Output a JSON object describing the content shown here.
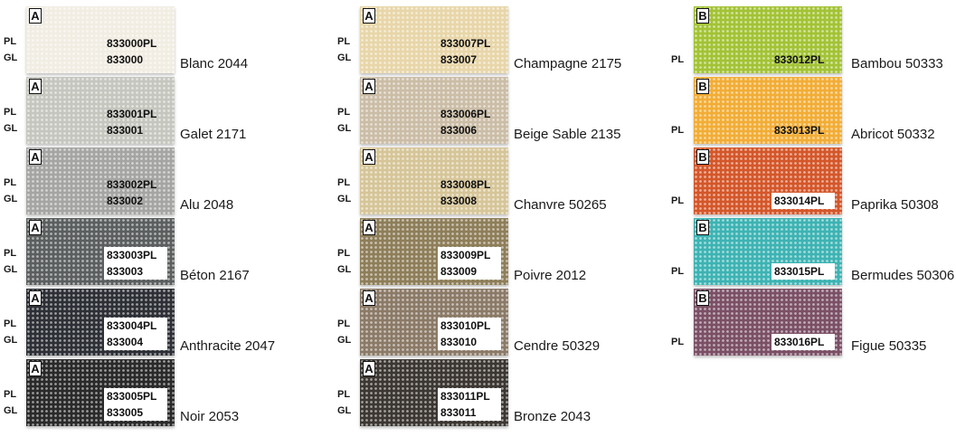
{
  "swatches": [
    {
      "grade": "A",
      "pl_label": "PL",
      "gl_label": "GL",
      "pl_code": "833000PL",
      "gl_code": "833000",
      "name": "Blanc 2044",
      "color": "#f1ede3",
      "box": "light"
    },
    {
      "grade": "A",
      "pl_label": "PL",
      "gl_label": "GL",
      "pl_code": "833001PL",
      "gl_code": "833001",
      "name": "Galet 2171",
      "color": "#c5c7bf",
      "box": "light"
    },
    {
      "grade": "A",
      "pl_label": "PL",
      "gl_label": "GL",
      "pl_code": "833002PL",
      "gl_code": "833002",
      "name": "Alu 2048",
      "color": "#a5a5a3",
      "box": "light"
    },
    {
      "grade": "A",
      "pl_label": "PL",
      "gl_label": "GL",
      "pl_code": "833003PL",
      "gl_code": "833003",
      "name": "Béton 2167",
      "color": "#5c5f5f",
      "box": "white"
    },
    {
      "grade": "A",
      "pl_label": "PL",
      "gl_label": "GL",
      "pl_code": "833004PL",
      "gl_code": "833004",
      "name": "Anthracite 2047",
      "color": "#2d3036",
      "box": "white"
    },
    {
      "grade": "A",
      "pl_label": "PL",
      "gl_label": "GL",
      "pl_code": "833005PL",
      "gl_code": "833005",
      "name": "Noir 2053",
      "color": "#2a2a2a",
      "box": "white"
    },
    {
      "grade": "A",
      "pl_label": "PL",
      "gl_label": "GL",
      "pl_code": "833007PL",
      "gl_code": "833007",
      "name": "Champagne 2175",
      "color": "#e8d6a9",
      "box": "light"
    },
    {
      "grade": "A",
      "pl_label": "PL",
      "gl_label": "GL",
      "pl_code": "833006PL",
      "gl_code": "833006",
      "name": "Beige Sable 2135",
      "color": "#cbbda6",
      "box": "light"
    },
    {
      "grade": "A",
      "pl_label": "PL",
      "gl_label": "GL",
      "pl_code": "833008PL",
      "gl_code": "833008",
      "name": "Chanvre 50265",
      "color": "#d6c598",
      "box": "light"
    },
    {
      "grade": "A",
      "pl_label": "PL",
      "gl_label": "GL",
      "pl_code": "833009PL",
      "gl_code": "833009",
      "name": "Poivre 2012",
      "color": "#8e7e59",
      "box": "white"
    },
    {
      "grade": "A",
      "pl_label": "PL",
      "gl_label": "GL",
      "pl_code": "833010PL",
      "gl_code": "833010",
      "name": "Cendre 50329",
      "color": "#8b7a67",
      "box": "white"
    },
    {
      "grade": "A",
      "pl_label": "PL",
      "gl_label": "GL",
      "pl_code": "833011PL",
      "gl_code": "833011",
      "name": "Bronze 2043",
      "color": "#3c3732",
      "box": "white"
    },
    {
      "grade": "B",
      "pl_label": "PL",
      "pl_code": "833012PL",
      "name": "Bambou 50333",
      "color": "#a3c335",
      "box": "light"
    },
    {
      "grade": "B",
      "pl_label": "PL",
      "pl_code": "833013PL",
      "name": "Abricot 50332",
      "color": "#f2ad36",
      "box": "light"
    },
    {
      "grade": "B",
      "pl_label": "PL",
      "pl_code": "833014PL",
      "name": "Paprika 50308",
      "color": "#d4572a",
      "box": "white"
    },
    {
      "grade": "B",
      "pl_label": "PL",
      "pl_code": "833015PL",
      "name": "Bermudes 50306",
      "color": "#3eb3b3",
      "box": "white"
    },
    {
      "grade": "B",
      "pl_label": "PL",
      "pl_code": "833016PL",
      "name": "Figue 50335",
      "color": "#7b5066",
      "box": "white"
    }
  ]
}
